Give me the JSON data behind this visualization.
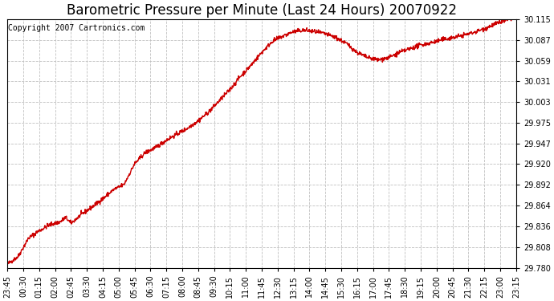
{
  "title": "Barometric Pressure per Minute (Last 24 Hours) 20070922",
  "copyright": "Copyright 2007 Cartronics.com",
  "line_color": "#cc0000",
  "bg_color": "#ffffff",
  "plot_bg_color": "#ffffff",
  "grid_color": "#c0c0c0",
  "grid_style": "--",
  "yticks": [
    29.78,
    29.808,
    29.836,
    29.864,
    29.892,
    29.92,
    29.947,
    29.975,
    30.003,
    30.031,
    30.059,
    30.087,
    30.115
  ],
  "ylim": [
    29.78,
    30.115
  ],
  "xtick_labels": [
    "23:45",
    "00:30",
    "01:15",
    "02:00",
    "02:45",
    "03:30",
    "04:15",
    "05:00",
    "05:45",
    "06:30",
    "07:15",
    "08:00",
    "08:45",
    "09:30",
    "10:15",
    "11:00",
    "11:45",
    "12:30",
    "13:15",
    "14:00",
    "14:45",
    "15:30",
    "16:15",
    "17:00",
    "17:45",
    "18:30",
    "19:15",
    "20:00",
    "20:45",
    "21:30",
    "22:15",
    "23:00",
    "23:15"
  ],
  "title_fontsize": 12,
  "copyright_fontsize": 7,
  "tick_fontsize": 7,
  "line_width": 1.0,
  "pressure_points": [
    [
      0,
      29.785
    ],
    [
      30,
      29.795
    ],
    [
      60,
      29.82
    ],
    [
      90,
      29.83
    ],
    [
      120,
      29.838
    ],
    [
      150,
      29.842
    ],
    [
      165,
      29.848
    ],
    [
      180,
      29.84
    ],
    [
      210,
      29.852
    ],
    [
      240,
      29.862
    ],
    [
      270,
      29.873
    ],
    [
      300,
      29.885
    ],
    [
      330,
      29.892
    ],
    [
      360,
      29.92
    ],
    [
      390,
      29.935
    ],
    [
      420,
      29.942
    ],
    [
      450,
      29.952
    ],
    [
      480,
      29.96
    ],
    [
      510,
      29.968
    ],
    [
      540,
      29.978
    ],
    [
      570,
      29.99
    ],
    [
      600,
      30.005
    ],
    [
      630,
      30.02
    ],
    [
      660,
      30.038
    ],
    [
      690,
      30.053
    ],
    [
      720,
      30.07
    ],
    [
      750,
      30.085
    ],
    [
      780,
      30.092
    ],
    [
      810,
      30.098
    ],
    [
      840,
      30.1
    ],
    [
      870,
      30.098
    ],
    [
      900,
      30.095
    ],
    [
      930,
      30.09
    ],
    [
      960,
      30.082
    ],
    [
      990,
      30.07
    ],
    [
      1020,
      30.063
    ],
    [
      1050,
      30.06
    ],
    [
      1080,
      30.063
    ],
    [
      1110,
      30.07
    ],
    [
      1140,
      30.075
    ],
    [
      1170,
      30.08
    ],
    [
      1200,
      30.083
    ],
    [
      1230,
      30.087
    ],
    [
      1260,
      30.09
    ],
    [
      1290,
      30.093
    ],
    [
      1320,
      30.097
    ],
    [
      1350,
      30.102
    ],
    [
      1380,
      30.108
    ],
    [
      1410,
      30.113
    ],
    [
      1440,
      30.118
    ]
  ]
}
